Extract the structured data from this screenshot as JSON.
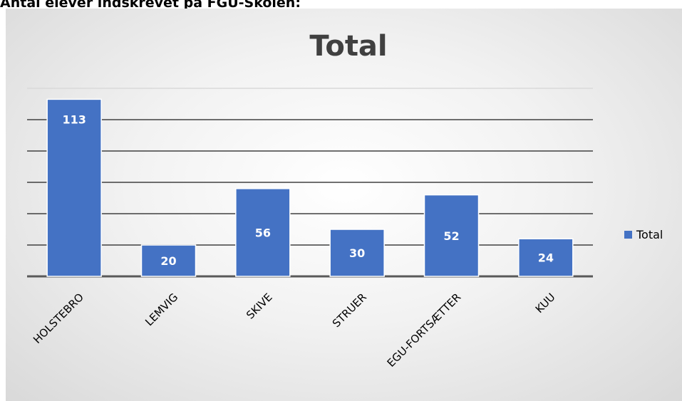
{
  "heading": "Antal elever indskrevet på FGU-Skolen:",
  "chart_data": {
    "type": "bar",
    "title": "Total",
    "categories": [
      "HOLSTEBRO",
      "LEMVIG",
      "SKIVE",
      "STRUER",
      "EGU-FORTSÆTTER",
      "KUU"
    ],
    "series": [
      {
        "name": "Total",
        "values": [
          113,
          20,
          56,
          30,
          52,
          24
        ],
        "color": "#4472c4"
      }
    ],
    "ylim": [
      0,
      120
    ],
    "gridlines": true,
    "legend_position": "right",
    "data_labels": true
  }
}
